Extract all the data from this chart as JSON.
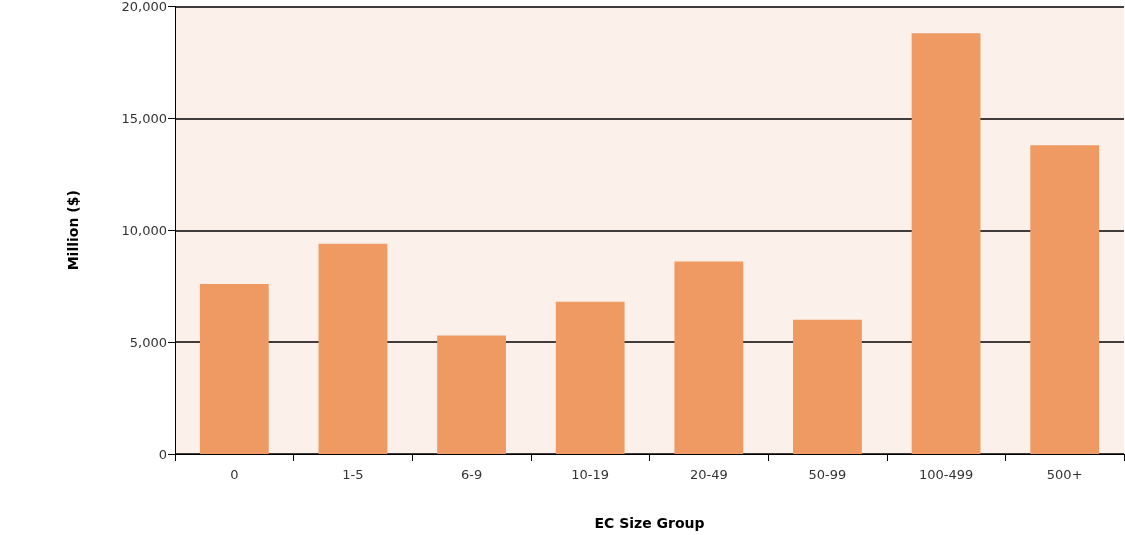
{
  "chart_data": {
    "type": "bar",
    "xlabel": "EC Size Group",
    "ylabel": "Million ($)",
    "categories": [
      "0",
      "1-5",
      "6-9",
      "10-19",
      "20-49",
      "50-99",
      "100-499",
      "500+"
    ],
    "values": [
      7600,
      9400,
      5300,
      6800,
      8600,
      6000,
      18800,
      13800
    ],
    "color": "#ef9a62",
    "ylim": [
      0,
      20000
    ],
    "yticks": [
      {
        "value": 0,
        "label": "0"
      },
      {
        "value": 5000,
        "label": "5,000"
      },
      {
        "value": 10000,
        "label": "10,000"
      },
      {
        "value": 15000,
        "label": "15,000"
      },
      {
        "value": 20000,
        "label": "20,000"
      }
    ],
    "grid": "y"
  }
}
